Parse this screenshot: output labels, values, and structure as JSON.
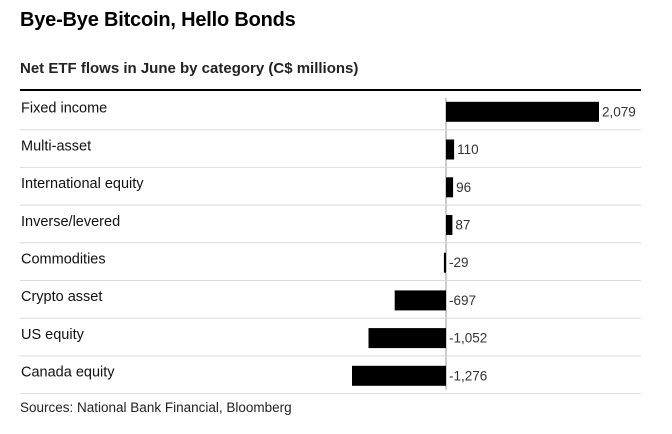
{
  "title": "Bye-Bye Bitcoin, Hello Bonds",
  "source": "Sources: National Bank Financial, Bloomberg",
  "colors": {
    "bar": "#000000",
    "row_divider": "#d9d9d9",
    "zero_line": "#9a9a9a"
  },
  "chart_data": {
    "type": "bar",
    "orientation": "horizontal",
    "title": "Net ETF flows in June by category (C$ millions)",
    "xlabel": "",
    "ylabel": "",
    "categories": [
      "Fixed income",
      "Multi-asset",
      "International equity",
      "Inverse/levered",
      "Commodities",
      "Crypto asset",
      "US equity",
      "Canada equity"
    ],
    "values": [
      2079,
      110,
      96,
      87,
      -29,
      -697,
      -1052,
      -1276
    ],
    "value_labels": [
      "2,079",
      "110",
      "96",
      "87",
      "-29",
      "-697",
      "-1,052",
      "-1,276"
    ],
    "xlim": [
      -1276,
      2079
    ],
    "grid": false,
    "legend": "none"
  }
}
